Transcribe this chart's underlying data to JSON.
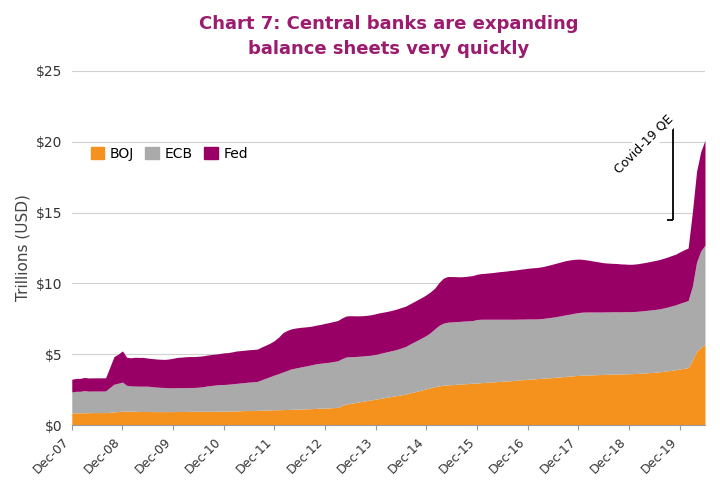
{
  "title": "Chart 7: Central banks are expanding\nbalance sheets very quickly",
  "title_color": "#9B1B6E",
  "ylabel": "Trillions (USD)",
  "ylabel_fontsize": 11,
  "title_fontsize": 13,
  "background_color": "#ffffff",
  "ylim": [
    0,
    25
  ],
  "yticks": [
    0,
    5,
    10,
    15,
    20,
    25
  ],
  "ytick_labels": [
    "$0",
    "$5",
    "$10",
    "$15",
    "$20",
    "$25"
  ],
  "colors": {
    "BOJ": "#F5921E",
    "ECB": "#AAAAAA",
    "Fed": "#990066"
  },
  "xtick_labels": [
    "Dec-07",
    "Dec-08",
    "Dec-09",
    "Dec-10",
    "Dec-11",
    "Dec-12",
    "Dec-13",
    "Dec-14",
    "Dec-15",
    "Dec-16",
    "Dec-17",
    "Dec-18",
    "Dec-19"
  ],
  "BOJ": [
    0.87,
    0.88,
    0.88,
    0.89,
    0.89,
    0.9,
    0.9,
    0.9,
    0.9,
    0.92,
    0.95,
    0.97,
    1.0,
    1.0,
    1.0,
    0.99,
    0.98,
    0.98,
    0.98,
    0.97,
    0.97,
    0.97,
    0.97,
    0.97,
    0.97,
    0.98,
    0.98,
    0.98,
    0.99,
    0.99,
    0.99,
    0.99,
    0.99,
    0.99,
    0.99,
    1.0,
    1.0,
    1.0,
    1.01,
    1.02,
    1.03,
    1.04,
    1.05,
    1.05,
    1.06,
    1.07,
    1.08,
    1.09,
    1.1,
    1.1,
    1.11,
    1.12,
    1.13,
    1.14,
    1.15,
    1.16,
    1.17,
    1.18,
    1.2,
    1.21,
    1.22,
    1.23,
    1.25,
    1.27,
    1.4,
    1.5,
    1.55,
    1.6,
    1.65,
    1.7,
    1.75,
    1.8,
    1.85,
    1.9,
    1.95,
    2.0,
    2.05,
    2.1,
    2.15,
    2.2,
    2.28,
    2.35,
    2.42,
    2.5,
    2.58,
    2.65,
    2.73,
    2.78,
    2.83,
    2.85,
    2.87,
    2.89,
    2.91,
    2.93,
    2.95,
    2.97,
    2.99,
    3.01,
    3.03,
    3.05,
    3.07,
    3.09,
    3.11,
    3.13,
    3.15,
    3.17,
    3.2,
    3.22,
    3.25,
    3.27,
    3.29,
    3.31,
    3.33,
    3.35,
    3.37,
    3.4,
    3.42,
    3.45,
    3.47,
    3.5,
    3.52,
    3.54,
    3.55,
    3.56,
    3.57,
    3.58,
    3.59,
    3.6,
    3.61,
    3.62,
    3.62,
    3.63,
    3.64,
    3.65,
    3.66,
    3.68,
    3.7,
    3.72,
    3.74,
    3.77,
    3.8,
    3.84,
    3.88,
    3.92,
    3.97,
    4.02,
    4.07,
    4.6,
    5.2,
    5.5,
    5.7
  ],
  "ECB": [
    1.48,
    1.52,
    1.52,
    1.56,
    1.52,
    1.52,
    1.52,
    1.52,
    1.52,
    1.75,
    1.95,
    2.0,
    2.05,
    1.82,
    1.78,
    1.78,
    1.78,
    1.78,
    1.78,
    1.76,
    1.73,
    1.71,
    1.7,
    1.68,
    1.68,
    1.68,
    1.68,
    1.68,
    1.68,
    1.68,
    1.7,
    1.73,
    1.78,
    1.82,
    1.85,
    1.88,
    1.88,
    1.9,
    1.92,
    1.94,
    1.96,
    1.98,
    2.0,
    2.02,
    2.04,
    2.15,
    2.25,
    2.35,
    2.45,
    2.55,
    2.65,
    2.75,
    2.85,
    2.9,
    2.95,
    3.0,
    3.05,
    3.1,
    3.15,
    3.17,
    3.2,
    3.22,
    3.25,
    3.28,
    3.3,
    3.32,
    3.29,
    3.25,
    3.22,
    3.19,
    3.17,
    3.15,
    3.15,
    3.17,
    3.19,
    3.21,
    3.23,
    3.25,
    3.3,
    3.35,
    3.43,
    3.52,
    3.6,
    3.68,
    3.76,
    3.9,
    4.08,
    4.27,
    4.37,
    4.42,
    4.42,
    4.42,
    4.42,
    4.42,
    4.42,
    4.42,
    4.47,
    4.47,
    4.45,
    4.43,
    4.41,
    4.39,
    4.37,
    4.35,
    4.33,
    4.31,
    4.29,
    4.27,
    4.25,
    4.23,
    4.21,
    4.21,
    4.22,
    4.24,
    4.26,
    4.28,
    4.31,
    4.34,
    4.37,
    4.4,
    4.43,
    4.44,
    4.44,
    4.43,
    4.42,
    4.41,
    4.4,
    4.4,
    4.39,
    4.39,
    4.38,
    4.38,
    4.37,
    4.37,
    4.38,
    4.39,
    4.4,
    4.41,
    4.42,
    4.43,
    4.46,
    4.49,
    4.53,
    4.57,
    4.63,
    4.68,
    4.73,
    5.2,
    6.3,
    6.8,
    7.0
  ],
  "Fed": [
    0.9,
    0.91,
    0.91,
    0.93,
    0.93,
    0.93,
    0.93,
    0.93,
    0.93,
    1.42,
    1.95,
    2.05,
    2.2,
    1.98,
    1.98,
    2.03,
    2.03,
    2.03,
    1.98,
    1.98,
    1.98,
    1.98,
    1.98,
    2.03,
    2.08,
    2.13,
    2.15,
    2.18,
    2.18,
    2.18,
    2.18,
    2.18,
    2.18,
    2.18,
    2.18,
    2.18,
    2.23,
    2.23,
    2.25,
    2.28,
    2.28,
    2.28,
    2.28,
    2.28,
    2.28,
    2.31,
    2.33,
    2.36,
    2.43,
    2.57,
    2.77,
    2.82,
    2.82,
    2.82,
    2.8,
    2.77,
    2.74,
    2.72,
    2.72,
    2.74,
    2.77,
    2.8,
    2.82,
    2.84,
    2.87,
    2.89,
    2.89,
    2.87,
    2.85,
    2.84,
    2.84,
    2.85,
    2.87,
    2.87,
    2.85,
    2.84,
    2.84,
    2.85,
    2.85,
    2.84,
    2.84,
    2.84,
    2.85,
    2.85,
    2.87,
    2.87,
    2.87,
    3.02,
    3.17,
    3.22,
    3.2,
    3.17,
    3.14,
    3.14,
    3.15,
    3.17,
    3.19,
    3.22,
    3.24,
    3.27,
    3.3,
    3.34,
    3.37,
    3.4,
    3.44,
    3.47,
    3.5,
    3.54,
    3.57,
    3.6,
    3.62,
    3.64,
    3.67,
    3.7,
    3.74,
    3.77,
    3.8,
    3.82,
    3.82,
    3.8,
    3.77,
    3.72,
    3.67,
    3.62,
    3.57,
    3.52,
    3.47,
    3.44,
    3.42,
    3.4,
    3.38,
    3.36,
    3.34,
    3.34,
    3.35,
    3.37,
    3.39,
    3.42,
    3.45,
    3.47,
    3.5,
    3.52,
    3.55,
    3.57,
    3.62,
    3.67,
    3.7,
    5.2,
    6.4,
    7.0,
    7.4
  ],
  "annotation_text": "Covid-19 QE",
  "annotation_rotation": 45
}
